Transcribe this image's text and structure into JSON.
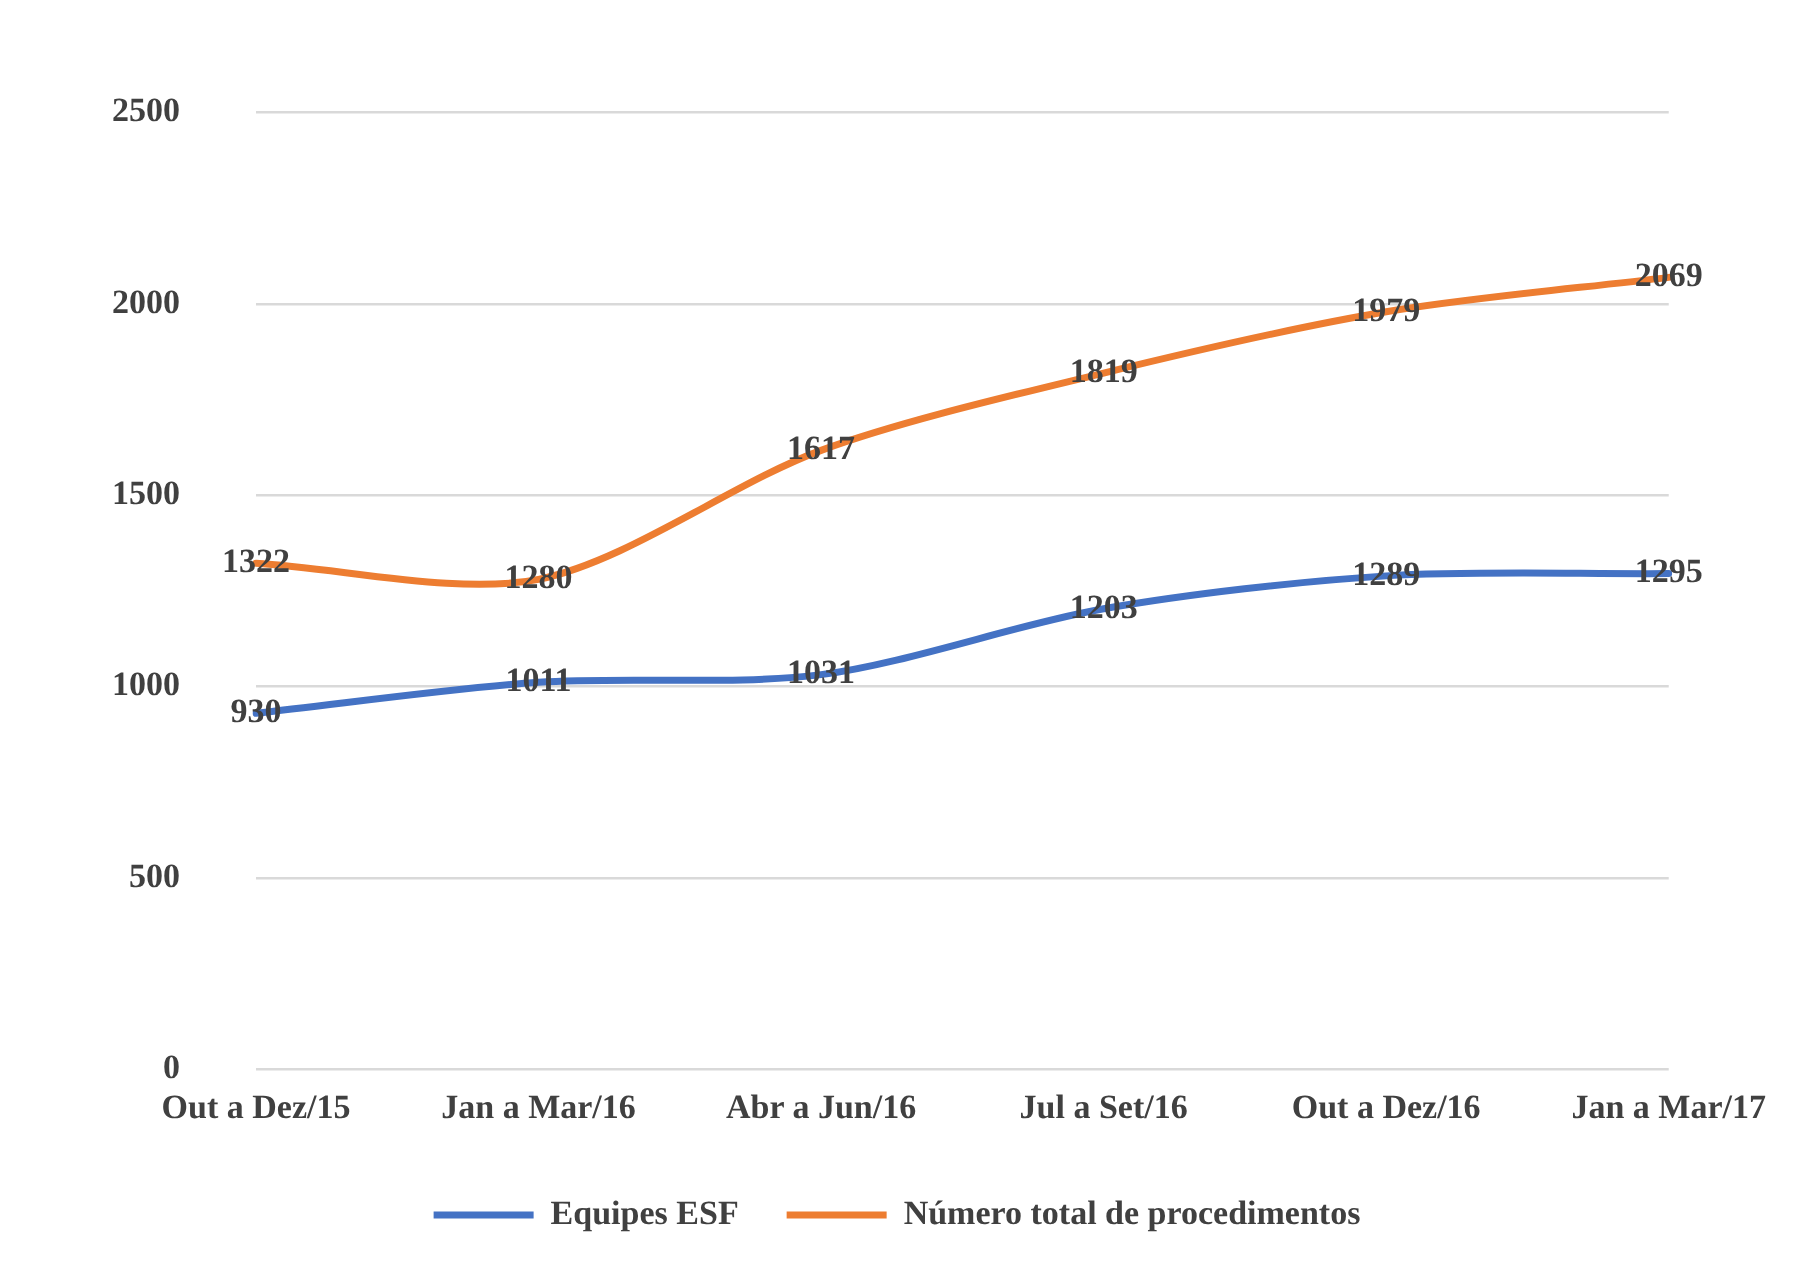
{
  "chart_data": {
    "type": "line",
    "categories": [
      "Out a Dez/15",
      "Jan a Mar/16",
      "Abr a Jun/16",
      "Jul a Set/16",
      "Out a Dez/16",
      "Jan a Mar/17"
    ],
    "series": [
      {
        "name": "Equipes ESF",
        "color": "#4472c4",
        "values": [
          930,
          1011,
          1031,
          1203,
          1289,
          1295
        ]
      },
      {
        "name": "Número total de procedimentos",
        "color": "#ed7d31",
        "values": [
          1322,
          1280,
          1617,
          1819,
          1979,
          2069
        ]
      }
    ],
    "ylim": [
      0,
      2500
    ],
    "yticks": [
      0,
      500,
      1000,
      1500,
      2000,
      2500
    ],
    "grid": "y",
    "legend": "bottom",
    "data_labels": true,
    "marker": "none",
    "line_style": "solid"
  }
}
